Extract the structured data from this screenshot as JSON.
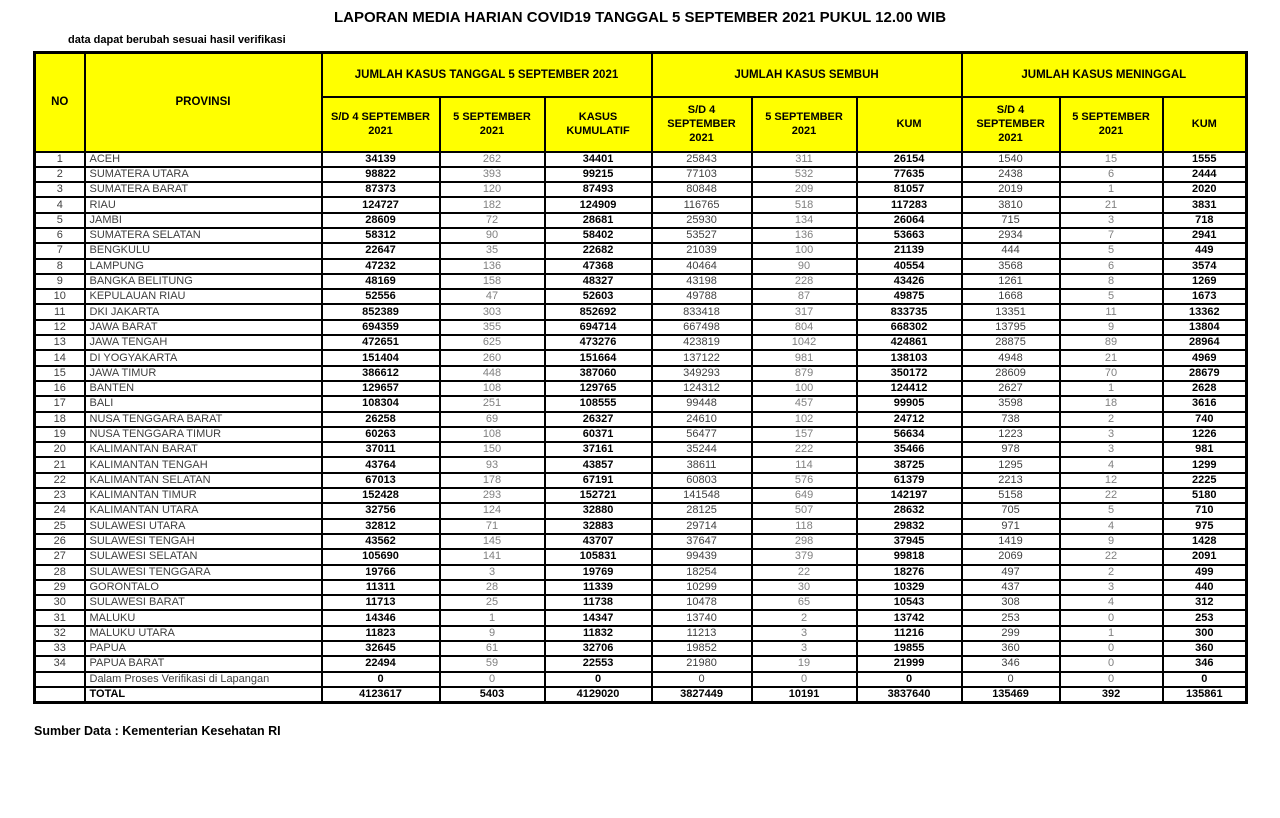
{
  "page": {
    "title": "LAPORAN MEDIA HARIAN COVID19 TANGGAL 5 SEPTEMBER 2021 PUKUL 12.00 WIB",
    "disclaimer": "data dapat berubah sesuai hasil verifikasi",
    "source": "Sumber Data : Kementerian Kesehatan RI"
  },
  "colors": {
    "header_bg": "#FFFF00",
    "border": "#000000",
    "bold_value_text": "#000000",
    "daily_value_text": "#7f7f7f",
    "base_value_text": "#404040"
  },
  "table": {
    "headers": {
      "no": "NO",
      "provinsi": "PROVINSI",
      "groups": [
        {
          "label": "JUMLAH KASUS TANGGAL 5 SEPTEMBER 2021",
          "cols": [
            "S/D 4 SEPTEMBER 2021",
            "5 SEPTEMBER 2021",
            "KASUS KUMULATIF"
          ]
        },
        {
          "label": "JUMLAH KASUS SEMBUH",
          "cols": [
            "S/D 4 SEPTEMBER 2021",
            "5 SEPTEMBER 2021",
            "KUM"
          ]
        },
        {
          "label": "JUMLAH KASUS MENINGGAL",
          "cols": [
            "S/D 4 SEPTEMBER 2021",
            "5 SEPTEMBER 2021",
            "KUM"
          ]
        }
      ]
    },
    "rows": [
      {
        "no": "1",
        "provinsi": "ACEH",
        "values": [
          34139,
          262,
          34401,
          25843,
          311,
          26154,
          1540,
          15,
          1555
        ]
      },
      {
        "no": "2",
        "provinsi": "SUMATERA UTARA",
        "values": [
          98822,
          393,
          99215,
          77103,
          532,
          77635,
          2438,
          6,
          2444
        ]
      },
      {
        "no": "3",
        "provinsi": "SUMATERA BARAT",
        "values": [
          87373,
          120,
          87493,
          80848,
          209,
          81057,
          2019,
          1,
          2020
        ]
      },
      {
        "no": "4",
        "provinsi": "RIAU",
        "values": [
          124727,
          182,
          124909,
          116765,
          518,
          117283,
          3810,
          21,
          3831
        ]
      },
      {
        "no": "5",
        "provinsi": "JAMBI",
        "values": [
          28609,
          72,
          28681,
          25930,
          134,
          26064,
          715,
          3,
          718
        ]
      },
      {
        "no": "6",
        "provinsi": "SUMATERA SELATAN",
        "values": [
          58312,
          90,
          58402,
          53527,
          136,
          53663,
          2934,
          7,
          2941
        ]
      },
      {
        "no": "7",
        "provinsi": "BENGKULU",
        "values": [
          22647,
          35,
          22682,
          21039,
          100,
          21139,
          444,
          5,
          449
        ]
      },
      {
        "no": "8",
        "provinsi": "LAMPUNG",
        "values": [
          47232,
          136,
          47368,
          40464,
          90,
          40554,
          3568,
          6,
          3574
        ]
      },
      {
        "no": "9",
        "provinsi": "BANGKA BELITUNG",
        "values": [
          48169,
          158,
          48327,
          43198,
          228,
          43426,
          1261,
          8,
          1269
        ]
      },
      {
        "no": "10",
        "provinsi": "KEPULAUAN RIAU",
        "values": [
          52556,
          47,
          52603,
          49788,
          87,
          49875,
          1668,
          5,
          1673
        ]
      },
      {
        "no": "11",
        "provinsi": "DKI JAKARTA",
        "values": [
          852389,
          303,
          852692,
          833418,
          317,
          833735,
          13351,
          11,
          13362
        ]
      },
      {
        "no": "12",
        "provinsi": "JAWA BARAT",
        "values": [
          694359,
          355,
          694714,
          667498,
          804,
          668302,
          13795,
          9,
          13804
        ]
      },
      {
        "no": "13",
        "provinsi": "JAWA TENGAH",
        "values": [
          472651,
          625,
          473276,
          423819,
          1042,
          424861,
          28875,
          89,
          28964
        ]
      },
      {
        "no": "14",
        "provinsi": "DI YOGYAKARTA",
        "values": [
          151404,
          260,
          151664,
          137122,
          981,
          138103,
          4948,
          21,
          4969
        ]
      },
      {
        "no": "15",
        "provinsi": "JAWA TIMUR",
        "values": [
          386612,
          448,
          387060,
          349293,
          879,
          350172,
          28609,
          70,
          28679
        ]
      },
      {
        "no": "16",
        "provinsi": "BANTEN",
        "values": [
          129657,
          108,
          129765,
          124312,
          100,
          124412,
          2627,
          1,
          2628
        ]
      },
      {
        "no": "17",
        "provinsi": "BALI",
        "values": [
          108304,
          251,
          108555,
          99448,
          457,
          99905,
          3598,
          18,
          3616
        ]
      },
      {
        "no": "18",
        "provinsi": "NUSA TENGGARA BARAT",
        "values": [
          26258,
          69,
          26327,
          24610,
          102,
          24712,
          738,
          2,
          740
        ]
      },
      {
        "no": "19",
        "provinsi": "NUSA TENGGARA TIMUR",
        "values": [
          60263,
          108,
          60371,
          56477,
          157,
          56634,
          1223,
          3,
          1226
        ]
      },
      {
        "no": "20",
        "provinsi": "KALIMANTAN BARAT",
        "values": [
          37011,
          150,
          37161,
          35244,
          222,
          35466,
          978,
          3,
          981
        ]
      },
      {
        "no": "21",
        "provinsi": "KALIMANTAN TENGAH",
        "values": [
          43764,
          93,
          43857,
          38611,
          114,
          38725,
          1295,
          4,
          1299
        ]
      },
      {
        "no": "22",
        "provinsi": "KALIMANTAN SELATAN",
        "values": [
          67013,
          178,
          67191,
          60803,
          576,
          61379,
          2213,
          12,
          2225
        ]
      },
      {
        "no": "23",
        "provinsi": "KALIMANTAN TIMUR",
        "values": [
          152428,
          293,
          152721,
          141548,
          649,
          142197,
          5158,
          22,
          5180
        ]
      },
      {
        "no": "24",
        "provinsi": "KALIMANTAN UTARA",
        "values": [
          32756,
          124,
          32880,
          28125,
          507,
          28632,
          705,
          5,
          710
        ]
      },
      {
        "no": "25",
        "provinsi": "SULAWESI UTARA",
        "values": [
          32812,
          71,
          32883,
          29714,
          118,
          29832,
          971,
          4,
          975
        ]
      },
      {
        "no": "26",
        "provinsi": "SULAWESI TENGAH",
        "values": [
          43562,
          145,
          43707,
          37647,
          298,
          37945,
          1419,
          9,
          1428
        ]
      },
      {
        "no": "27",
        "provinsi": "SULAWESI SELATAN",
        "values": [
          105690,
          141,
          105831,
          99439,
          379,
          99818,
          2069,
          22,
          2091
        ]
      },
      {
        "no": "28",
        "provinsi": "SULAWESI TENGGARA",
        "values": [
          19766,
          3,
          19769,
          18254,
          22,
          18276,
          497,
          2,
          499
        ]
      },
      {
        "no": "29",
        "provinsi": "GORONTALO",
        "values": [
          11311,
          28,
          11339,
          10299,
          30,
          10329,
          437,
          3,
          440
        ]
      },
      {
        "no": "30",
        "provinsi": "SULAWESI BARAT",
        "values": [
          11713,
          25,
          11738,
          10478,
          65,
          10543,
          308,
          4,
          312
        ]
      },
      {
        "no": "31",
        "provinsi": "MALUKU",
        "values": [
          14346,
          1,
          14347,
          13740,
          2,
          13742,
          253,
          0,
          253
        ]
      },
      {
        "no": "32",
        "provinsi": "MALUKU UTARA",
        "values": [
          11823,
          9,
          11832,
          11213,
          3,
          11216,
          299,
          1,
          300
        ]
      },
      {
        "no": "33",
        "provinsi": "PAPUA",
        "values": [
          32645,
          61,
          32706,
          19852,
          3,
          19855,
          360,
          0,
          360
        ]
      },
      {
        "no": "34",
        "provinsi": "PAPUA BARAT",
        "values": [
          22494,
          59,
          22553,
          21980,
          19,
          21999,
          346,
          0,
          346
        ]
      }
    ],
    "verification_row": {
      "no": "",
      "provinsi": "Dalam Proses Verifikasi di Lapangan",
      "values": [
        0,
        0,
        0,
        0,
        0,
        0,
        0,
        0,
        0
      ]
    },
    "total_row": {
      "no": "",
      "provinsi": "TOTAL",
      "values": [
        4123617,
        5403,
        4129020,
        3827449,
        10191,
        3837640,
        135469,
        392,
        135861
      ]
    }
  }
}
